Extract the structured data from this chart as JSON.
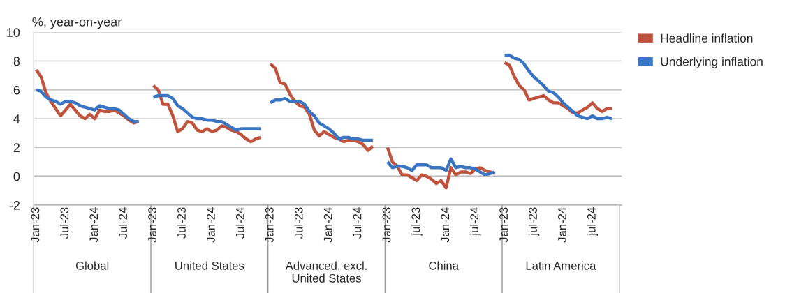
{
  "chart_data": {
    "type": "line",
    "ylabel": "%, year-on-year",
    "categories": [
      "Jan-23",
      null,
      null,
      null,
      null,
      null,
      "Jul-23",
      null,
      null,
      null,
      null,
      null,
      "Jan-24",
      null,
      null,
      null,
      null,
      null,
      "Jul-24",
      null,
      null,
      null,
      null,
      null,
      "Jan-23",
      null,
      null,
      null,
      null,
      null,
      "Jul-23",
      null,
      null,
      null,
      null,
      null,
      "Jan-24",
      null,
      null,
      null,
      null,
      null,
      "Jul-24",
      null,
      null,
      null,
      null,
      null,
      "Jan-23",
      null,
      null,
      null,
      null,
      null,
      "Jul-23",
      null,
      null,
      null,
      null,
      null,
      "Jan-24",
      null,
      null,
      null,
      null,
      null,
      "Jul-24",
      null,
      null,
      null,
      null,
      null,
      "Jan-23",
      null,
      null,
      null,
      null,
      null,
      "jul-23",
      null,
      null,
      null,
      null,
      null,
      "Jan-24",
      null,
      null,
      null,
      null,
      null,
      "jul-24",
      null,
      null,
      null,
      null,
      null,
      "Jan-23",
      null,
      null,
      null,
      null,
      null,
      "jul-23",
      null,
      null,
      null,
      null,
      null,
      "Jan-24",
      null,
      null,
      null,
      null,
      null,
      "jul-24",
      null,
      null,
      null,
      null,
      null
    ],
    "series": [
      {
        "name": "Headline inflation",
        "color": "#c0533d",
        "values": [
          7.4,
          6.9,
          5.8,
          5.2,
          4.7,
          4.2,
          4.6,
          5.0,
          4.6,
          4.2,
          4.0,
          4.3,
          4.0,
          4.6,
          4.5,
          4.5,
          4.6,
          4.4,
          4.2,
          3.9,
          3.7,
          3.8,
          null,
          null,
          6.3,
          6.0,
          5.0,
          5.0,
          4.2,
          3.1,
          3.3,
          3.8,
          3.7,
          3.2,
          3.1,
          3.3,
          3.1,
          3.2,
          3.5,
          3.4,
          3.2,
          3.1,
          2.9,
          2.6,
          2.4,
          2.6,
          2.7,
          null,
          7.8,
          7.5,
          6.5,
          6.4,
          5.7,
          5.2,
          4.9,
          4.8,
          4.3,
          3.2,
          2.8,
          3.1,
          2.9,
          2.7,
          2.6,
          2.4,
          2.5,
          2.5,
          2.4,
          2.2,
          1.8,
          2.1,
          null,
          null,
          2.0,
          1.0,
          0.7,
          0.1,
          0.1,
          -0.1,
          -0.3,
          0.1,
          0.0,
          -0.2,
          -0.5,
          -0.3,
          -0.8,
          0.6,
          0.1,
          0.3,
          0.3,
          0.2,
          0.5,
          0.6,
          0.4,
          0.3,
          0.2,
          null,
          7.9,
          7.7,
          6.9,
          6.3,
          6.0,
          5.3,
          5.4,
          5.5,
          5.6,
          5.3,
          5.1,
          5.1,
          4.9,
          4.7,
          4.4,
          4.4,
          4.6,
          4.8,
          5.1,
          4.7,
          4.5,
          4.7,
          4.7,
          null
        ]
      },
      {
        "name": "Underlying inflation",
        "color": "#3a75c4",
        "values": [
          6.0,
          5.9,
          5.5,
          5.3,
          5.2,
          5.0,
          5.2,
          5.2,
          5.1,
          4.9,
          4.8,
          4.7,
          4.6,
          4.9,
          4.8,
          4.7,
          4.7,
          4.6,
          4.3,
          4.0,
          3.8,
          3.8,
          null,
          null,
          5.5,
          5.6,
          5.6,
          5.6,
          5.4,
          4.9,
          4.7,
          4.4,
          4.1,
          4.0,
          4.0,
          3.9,
          3.9,
          3.8,
          3.8,
          3.6,
          3.4,
          3.2,
          3.3,
          3.3,
          3.3,
          3.3,
          3.3,
          null,
          5.1,
          5.3,
          5.3,
          5.4,
          5.2,
          5.2,
          5.2,
          5.0,
          4.5,
          4.2,
          3.7,
          3.5,
          3.3,
          3.0,
          2.6,
          2.7,
          2.7,
          2.6,
          2.6,
          2.5,
          2.5,
          2.5,
          null,
          null,
          1.0,
          0.6,
          0.7,
          0.7,
          0.6,
          0.4,
          0.8,
          0.8,
          0.8,
          0.6,
          0.6,
          0.6,
          0.4,
          1.2,
          0.6,
          0.7,
          0.6,
          0.6,
          0.5,
          0.3,
          0.1,
          0.2,
          0.3,
          null,
          8.4,
          8.4,
          8.2,
          8.1,
          7.8,
          7.3,
          6.9,
          6.6,
          6.3,
          5.9,
          5.8,
          5.5,
          5.1,
          4.8,
          4.5,
          4.2,
          4.1,
          4.0,
          4.2,
          4.0,
          4.0,
          4.1,
          4.0,
          null
        ]
      }
    ],
    "ylim": [
      -2,
      10
    ],
    "yticks": [
      -2,
      0,
      2,
      4,
      6,
      8,
      10
    ],
    "grid": "y",
    "legend": "top right",
    "line_style": "solid",
    "marker": "none",
    "annotations": [
      "Global",
      "United States",
      "Advanced, excl.\nUnited States",
      "China",
      "Latin America"
    ]
  }
}
